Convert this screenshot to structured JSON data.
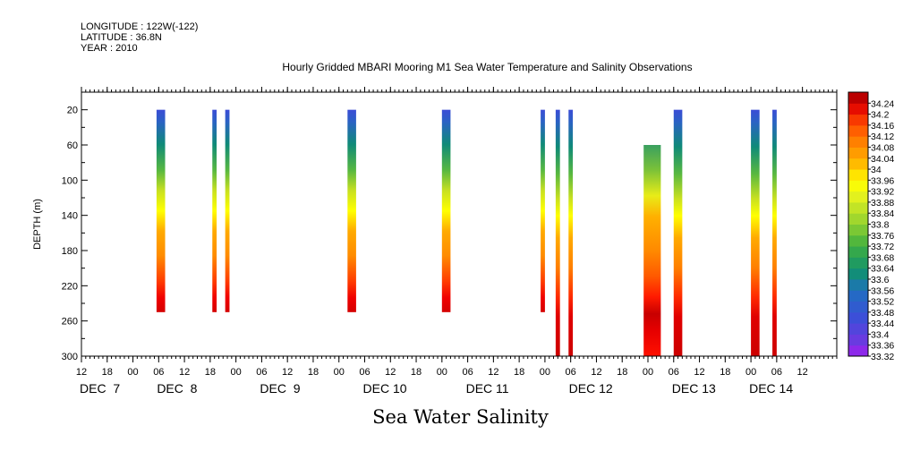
{
  "meta": {
    "longitude": "LONGITUDE : 122W(-122)",
    "latitude": "LATITUDE : 36.8N",
    "year": "YEAR : 2010"
  },
  "chart_data": {
    "type": "heatmap",
    "title": "Hourly Gridded MBARI Mooring M1 Sea Water Temperature and Salinity Observations",
    "xlabel": "Sea Water Salinity",
    "ylabel": "DEPTH (m)",
    "y_reversed": true,
    "ylim": [
      300,
      0
    ],
    "yticks": [
      20,
      60,
      100,
      140,
      180,
      220,
      260,
      300
    ],
    "xlim_hours": [
      0,
      176
    ],
    "x_hour_ticks": [
      {
        "t": 0,
        "label": "12"
      },
      {
        "t": 6,
        "label": "18"
      },
      {
        "t": 12,
        "label": "00"
      },
      {
        "t": 18,
        "label": "06"
      },
      {
        "t": 24,
        "label": "12"
      },
      {
        "t": 30,
        "label": "18"
      },
      {
        "t": 36,
        "label": "00"
      },
      {
        "t": 42,
        "label": "06"
      },
      {
        "t": 48,
        "label": "12"
      },
      {
        "t": 54,
        "label": "18"
      },
      {
        "t": 60,
        "label": "00"
      },
      {
        "t": 66,
        "label": "06"
      },
      {
        "t": 72,
        "label": "12"
      },
      {
        "t": 78,
        "label": "18"
      },
      {
        "t": 84,
        "label": "00"
      },
      {
        "t": 90,
        "label": "06"
      },
      {
        "t": 96,
        "label": "12"
      },
      {
        "t": 102,
        "label": "18"
      },
      {
        "t": 108,
        "label": "00"
      },
      {
        "t": 114,
        "label": "06"
      },
      {
        "t": 120,
        "label": "12"
      },
      {
        "t": 126,
        "label": "18"
      },
      {
        "t": 132,
        "label": "00"
      },
      {
        "t": 138,
        "label": "06"
      },
      {
        "t": 144,
        "label": "12"
      },
      {
        "t": 150,
        "label": "18"
      },
      {
        "t": 156,
        "label": "00"
      },
      {
        "t": 162,
        "label": "06"
      },
      {
        "t": 168,
        "label": "12"
      }
    ],
    "x_day_labels": [
      {
        "t": 0,
        "label": "DEC  7"
      },
      {
        "t": 18,
        "label": "DEC  8"
      },
      {
        "t": 42,
        "label": "DEC  9"
      },
      {
        "t": 66,
        "label": "DEC 10"
      },
      {
        "t": 90,
        "label": "DEC 11"
      },
      {
        "t": 114,
        "label": "DEC 12"
      },
      {
        "t": 138,
        "label": "DEC 13"
      },
      {
        "t": 156,
        "label": "DEC 14"
      }
    ],
    "colorbar": {
      "min": 33.32,
      "max": 34.28,
      "step": 0.04,
      "labels": [
        "34.24",
        "34.2",
        "34.16",
        "34.12",
        "34.08",
        "34.04",
        "34",
        "33.96",
        "33.92",
        "33.88",
        "33.84",
        "33.8",
        "33.76",
        "33.72",
        "33.68",
        "33.64",
        "33.6",
        "33.56",
        "33.52",
        "33.48",
        "33.44",
        "33.4",
        "33.36",
        "33.32"
      ]
    },
    "profiles": [
      {
        "t0": 17.5,
        "t1": 19.5,
        "dmin": 20,
        "dmax": 250,
        "kind": "full"
      },
      {
        "t0": 30.5,
        "t1": 31.5,
        "dmin": 20,
        "dmax": 250,
        "kind": "full"
      },
      {
        "t0": 33.5,
        "t1": 34.5,
        "dmin": 20,
        "dmax": 250,
        "kind": "full"
      },
      {
        "t0": 62,
        "t1": 64,
        "dmin": 20,
        "dmax": 250,
        "kind": "full"
      },
      {
        "t0": 84,
        "t1": 86,
        "dmin": 20,
        "dmax": 250,
        "kind": "full"
      },
      {
        "t0": 107,
        "t1": 108,
        "dmin": 20,
        "dmax": 250,
        "kind": "full"
      },
      {
        "t0": 110.5,
        "t1": 111.5,
        "dmin": 20,
        "dmax": 300,
        "kind": "deep"
      },
      {
        "t0": 113.5,
        "t1": 114.5,
        "dmin": 20,
        "dmax": 300,
        "kind": "deep"
      },
      {
        "t0": 131,
        "t1": 135,
        "dmin": 60,
        "dmax": 300,
        "kind": "core"
      },
      {
        "t0": 138,
        "t1": 140,
        "dmin": 20,
        "dmax": 300,
        "kind": "deep"
      },
      {
        "t0": 156,
        "t1": 158,
        "dmin": 20,
        "dmax": 300,
        "kind": "deep"
      },
      {
        "t0": 161,
        "t1": 162,
        "dmin": 20,
        "dmax": 300,
        "kind": "deep"
      }
    ]
  }
}
